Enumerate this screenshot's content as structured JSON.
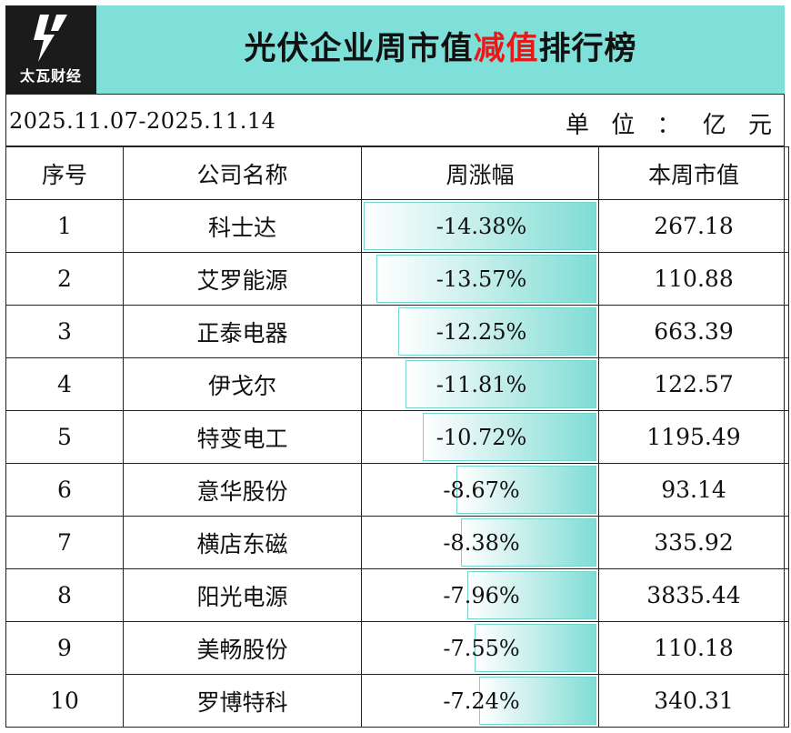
{
  "brand": {
    "logo_text": "太瓦财经",
    "logo_icon": "lightning-bolt-icon"
  },
  "title": {
    "part1": "光伏企业周市值",
    "highlight": "减值",
    "part2": "排行榜",
    "highlight_color": "#e41a1a"
  },
  "date_range": "2025.11.07-2025.11.14",
  "unit_label": "单 位 ： 亿 元",
  "colors": {
    "header_bg": "#7fe0d9",
    "bar": "#7fddd5"
  },
  "columns": [
    "序号",
    "公司名称",
    "周涨幅",
    "本周市值"
  ],
  "rows": [
    {
      "rank": "1",
      "company": "科士达",
      "change": "-14.38%",
      "change_value": -14.38,
      "market_cap": "267.18"
    },
    {
      "rank": "2",
      "company": "艾罗能源",
      "change": "-13.57%",
      "change_value": -13.57,
      "market_cap": "110.88"
    },
    {
      "rank": "3",
      "company": "正泰电器",
      "change": "-12.25%",
      "change_value": -12.25,
      "market_cap": "663.39"
    },
    {
      "rank": "4",
      "company": "伊戈尔",
      "change": "-11.81%",
      "change_value": -11.81,
      "market_cap": "122.57"
    },
    {
      "rank": "5",
      "company": "特变电工",
      "change": "-10.72%",
      "change_value": -10.72,
      "market_cap": "1195.49"
    },
    {
      "rank": "6",
      "company": "意华股份",
      "change": "-8.67%",
      "change_value": -8.67,
      "market_cap": "93.14"
    },
    {
      "rank": "7",
      "company": "横店东磁",
      "change": "-8.38%",
      "change_value": -8.38,
      "market_cap": "335.92"
    },
    {
      "rank": "8",
      "company": "阳光电源",
      "change": "-7.96%",
      "change_value": -7.96,
      "market_cap": "3835.44"
    },
    {
      "rank": "9",
      "company": "美畅股份",
      "change": "-7.55%",
      "change_value": -7.55,
      "market_cap": "110.18"
    },
    {
      "rank": "10",
      "company": "罗博特科",
      "change": "-7.24%",
      "change_value": -7.24,
      "market_cap": "340.31"
    }
  ]
}
